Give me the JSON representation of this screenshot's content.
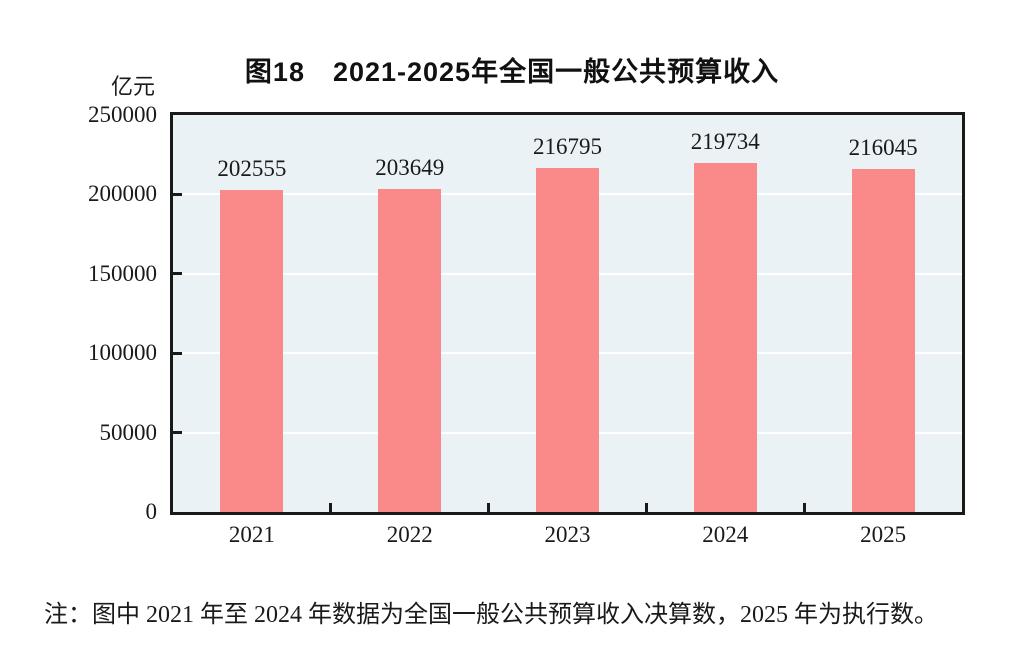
{
  "chart_data": {
    "type": "bar",
    "title": "图18　2021-2025年全国一般公共预算收入",
    "ylabel": "亿元",
    "categories": [
      "2021",
      "2022",
      "2023",
      "2024",
      "2025"
    ],
    "values": [
      202555,
      203649,
      216795,
      219734,
      216045
    ],
    "ylim": [
      0,
      250000
    ],
    "yticks": [
      0,
      50000,
      100000,
      150000,
      200000,
      250000
    ],
    "grid": "horizontal white gridlines at each y tick, behind bars",
    "legend": "none",
    "note": "注：图中 2021 年至 2024 年数据为全国一般公共预算收入决算数，2025 年为执行数。",
    "colors": {
      "bar": "#fa8a8a",
      "plot_background": "#eaf2f6",
      "gridline": "#ffffff",
      "axis": "#1a1a1a",
      "text": "#1a1a1a"
    }
  }
}
